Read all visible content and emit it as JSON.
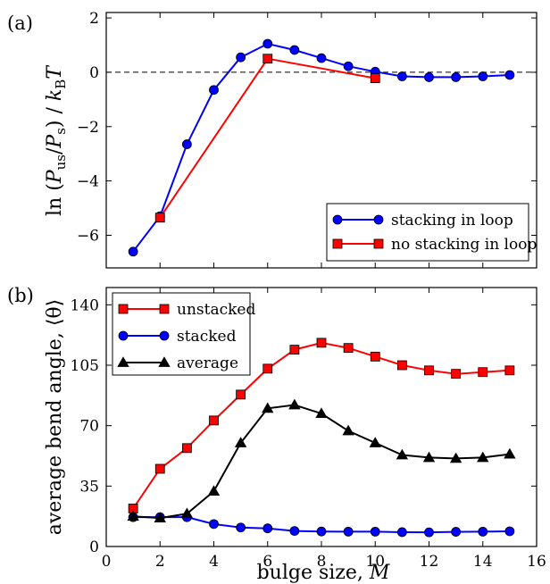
{
  "panels": [
    {
      "label": "(a)",
      "ylabel_text": "ln (Pus / Ps) / kBT",
      "chart_data": {
        "type": "line",
        "x_label": "",
        "xlim": [
          0,
          16
        ],
        "ylim": [
          -7.2,
          2.2
        ],
        "xticks": [
          0,
          2,
          4,
          6,
          8,
          10,
          12,
          14,
          16
        ],
        "yticks": [
          -6,
          -4,
          -2,
          0,
          2
        ],
        "ytick_labels": [
          "−6",
          "−4",
          "−2",
          "0",
          "2"
        ],
        "reference_line": {
          "y": 0,
          "style": "dashed"
        },
        "legend_position": "lower-right",
        "series": [
          {
            "name": "stacking in loop",
            "color": "#0000ff",
            "marker": "circle",
            "x": [
              1,
              2,
              3,
              4,
              5,
              6,
              7,
              8,
              9,
              10,
              11,
              12,
              13,
              14,
              15
            ],
            "y": [
              -6.6,
              -5.3,
              -2.65,
              -0.65,
              0.55,
              1.05,
              0.82,
              0.52,
              0.22,
              0.02,
              -0.15,
              -0.18,
              -0.18,
              -0.15,
              -0.1
            ]
          },
          {
            "name": "no stacking in loop",
            "color": "#ff0000",
            "marker": "square",
            "x": [
              2,
              6,
              10
            ],
            "y": [
              -5.35,
              0.5,
              -0.22
            ]
          }
        ]
      }
    },
    {
      "label": "(b)",
      "chart_data": {
        "type": "line",
        "x_label": "bulge size, M",
        "y_label": "average bend angle, ⟨θ⟩",
        "xlim": [
          0,
          16
        ],
        "ylim": [
          0,
          150
        ],
        "xticks": [
          0,
          2,
          4,
          6,
          8,
          10,
          12,
          14,
          16
        ],
        "yticks": [
          0,
          35,
          70,
          105,
          140
        ],
        "legend_position": "upper-left",
        "series": [
          {
            "name": "unstacked",
            "color": "#ff0000",
            "marker": "square",
            "x": [
              1,
              2,
              3,
              4,
              5,
              6,
              7,
              8,
              9,
              10,
              11,
              12,
              13,
              14,
              15
            ],
            "y": [
              22,
              45,
              57,
              73,
              88,
              103,
              114,
              118,
              115,
              110,
              105,
              102,
              100,
              101,
              102
            ]
          },
          {
            "name": "stacked",
            "color": "#0000ff",
            "marker": "circle",
            "x": [
              1,
              2,
              3,
              4,
              5,
              6,
              7,
              8,
              9,
              10,
              11,
              12,
              13,
              14,
              15
            ],
            "y": [
              17,
              17,
              17,
              13,
              11,
              10.5,
              9,
              8.7,
              8.6,
              8.6,
              8.3,
              8.2,
              8.5,
              8.6,
              8.8
            ]
          },
          {
            "name": "average",
            "color": "#000000",
            "marker": "triangle",
            "x": [
              1,
              2,
              3,
              4,
              5,
              6,
              7,
              8,
              9,
              10,
              11,
              12,
              13,
              14,
              15
            ],
            "y": [
              17.5,
              16.5,
              19,
              32,
              60,
              80,
              82,
              77,
              67,
              60,
              53,
              51.5,
              51,
              51.5,
              53.5
            ]
          }
        ]
      }
    }
  ]
}
